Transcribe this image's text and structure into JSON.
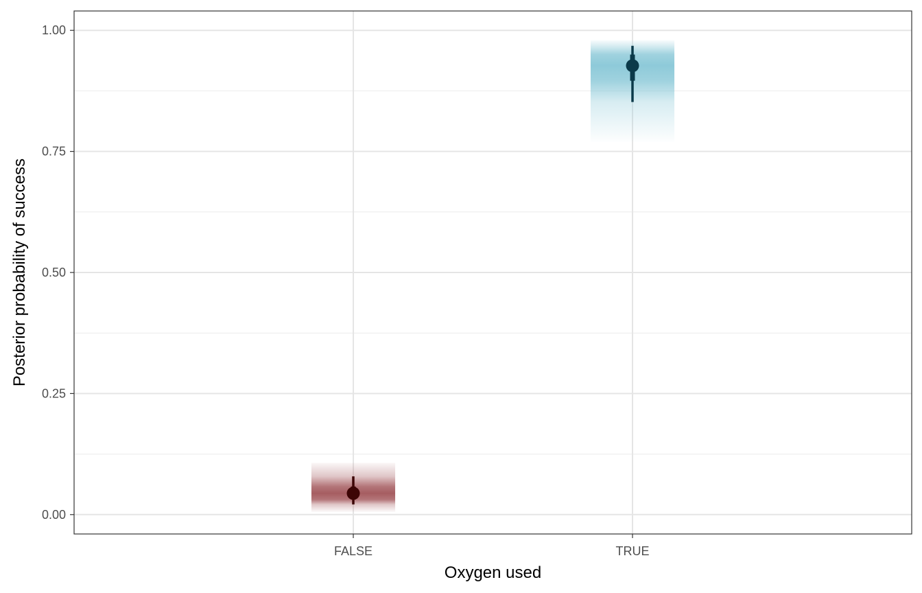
{
  "chart_data": {
    "type": "interval",
    "xlabel": "Oxygen used",
    "ylabel": "Posterior probability of success",
    "categories": [
      "FALSE",
      "TRUE"
    ],
    "ylim": [
      -0.04,
      1.04
    ],
    "yticks": [
      0.0,
      0.25,
      0.5,
      0.75,
      1.0
    ],
    "ytick_labels": [
      "0.00",
      "0.25",
      "0.50",
      "0.75",
      "1.00"
    ],
    "grid": true,
    "legend": "none",
    "series": [
      {
        "category": "FALSE",
        "point": 0.044,
        "interval_inner": [
          0.031,
          0.058
        ],
        "interval_outer": [
          0.021,
          0.079
        ],
        "gradient_range": [
          0.005,
          0.107
        ],
        "fill_color": "#a65d61",
        "point_color": "#3d0505"
      },
      {
        "category": "TRUE",
        "point": 0.927,
        "interval_inner": [
          0.896,
          0.95
        ],
        "interval_outer": [
          0.852,
          0.968
        ],
        "gradient_range": [
          0.77,
          0.98
        ],
        "fill_color": "#8ecad9",
        "point_color": "#0b3a4a"
      }
    ]
  }
}
